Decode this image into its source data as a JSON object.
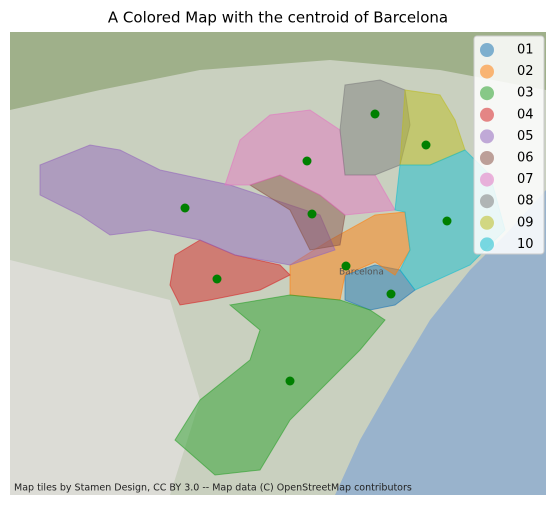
{
  "chart_data": {
    "type": "map",
    "title": "A Colored Map with the centroid of Barcelona",
    "districts": [
      {
        "name": "01",
        "color": "#1f77b4"
      },
      {
        "name": "02",
        "color": "#ff7f0e"
      },
      {
        "name": "03",
        "color": "#2ca02c"
      },
      {
        "name": "04",
        "color": "#d62728"
      },
      {
        "name": "05",
        "color": "#9467bd"
      },
      {
        "name": "06",
        "color": "#8c564b"
      },
      {
        "name": "07",
        "color": "#e377c2"
      },
      {
        "name": "08",
        "color": "#7f7f7f"
      },
      {
        "name": "09",
        "color": "#bcbd22"
      },
      {
        "name": "10",
        "color": "#17becf"
      }
    ],
    "map_label": "Barcelona",
    "attribution": "Map tiles by Stamen Design, CC BY 3.0 -- Map data (C) OpenStreetMap contributors"
  }
}
